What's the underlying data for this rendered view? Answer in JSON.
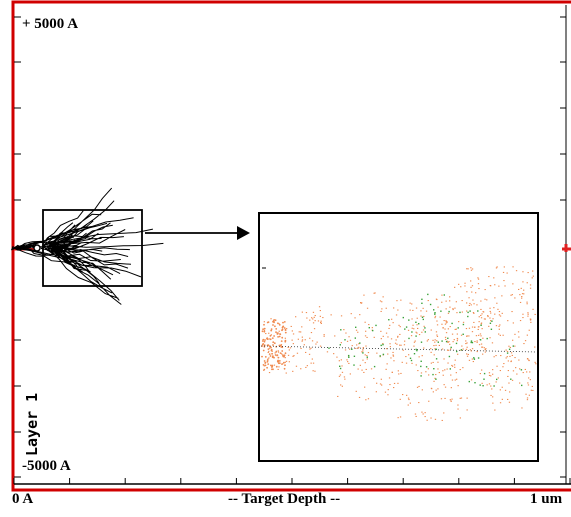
{
  "chart_data": {
    "type": "scatter",
    "title": "",
    "xlabel": "-- Target Depth --",
    "x_tick_labels": [
      "0 A",
      "1 um"
    ],
    "y_tick_labels": [
      "+ 5000 A",
      "-5000 A"
    ],
    "layer_label": "Layer 1",
    "xlim": [
      0,
      10000
    ],
    "ylim": [
      -5000,
      5000
    ],
    "x_unit": "A",
    "y_unit": "A",
    "grid": false,
    "legend": "none",
    "series": [
      {
        "color": "#000000",
        "description": "ion trajectory cascade",
        "points": [
          [
            0,
            0
          ],
          [
            400,
            60
          ],
          [
            900,
            300
          ],
          [
            1300,
            180
          ],
          [
            1700,
            520
          ],
          [
            2200,
            700
          ],
          [
            2500,
            380
          ],
          [
            2700,
            120
          ],
          [
            1900,
            -300
          ],
          [
            1400,
            -500
          ],
          [
            2300,
            -620
          ],
          [
            1100,
            230
          ],
          [
            800,
            -180
          ]
        ]
      },
      {
        "color": "#f08b50",
        "description": "recoil cascade (magnified inset)",
        "points": [
          [
            50,
            10
          ],
          [
            300,
            60
          ],
          [
            1200,
            320
          ],
          [
            2100,
            700
          ],
          [
            2600,
            -40
          ],
          [
            3100,
            500
          ],
          [
            3600,
            -300
          ],
          [
            4000,
            250
          ],
          [
            4300,
            -900
          ],
          [
            3400,
            1100
          ],
          [
            2800,
            -1200
          ],
          [
            1800,
            -650
          ],
          [
            3900,
            1300
          ]
        ]
      },
      {
        "color": "#3aa23a",
        "description": "displacement events (magnified inset)",
        "points": [
          [
            1500,
            0
          ],
          [
            2200,
            120
          ],
          [
            2900,
            -200
          ],
          [
            3300,
            300
          ],
          [
            3800,
            -400
          ],
          [
            3000,
            700
          ]
        ]
      }
    ]
  },
  "colors": {
    "frame": "#d00000",
    "axis": "#000000",
    "trajectory": "#000000",
    "recoil": "#f08b50",
    "vacancy": "#3aa23a",
    "beam": "#e02020"
  }
}
